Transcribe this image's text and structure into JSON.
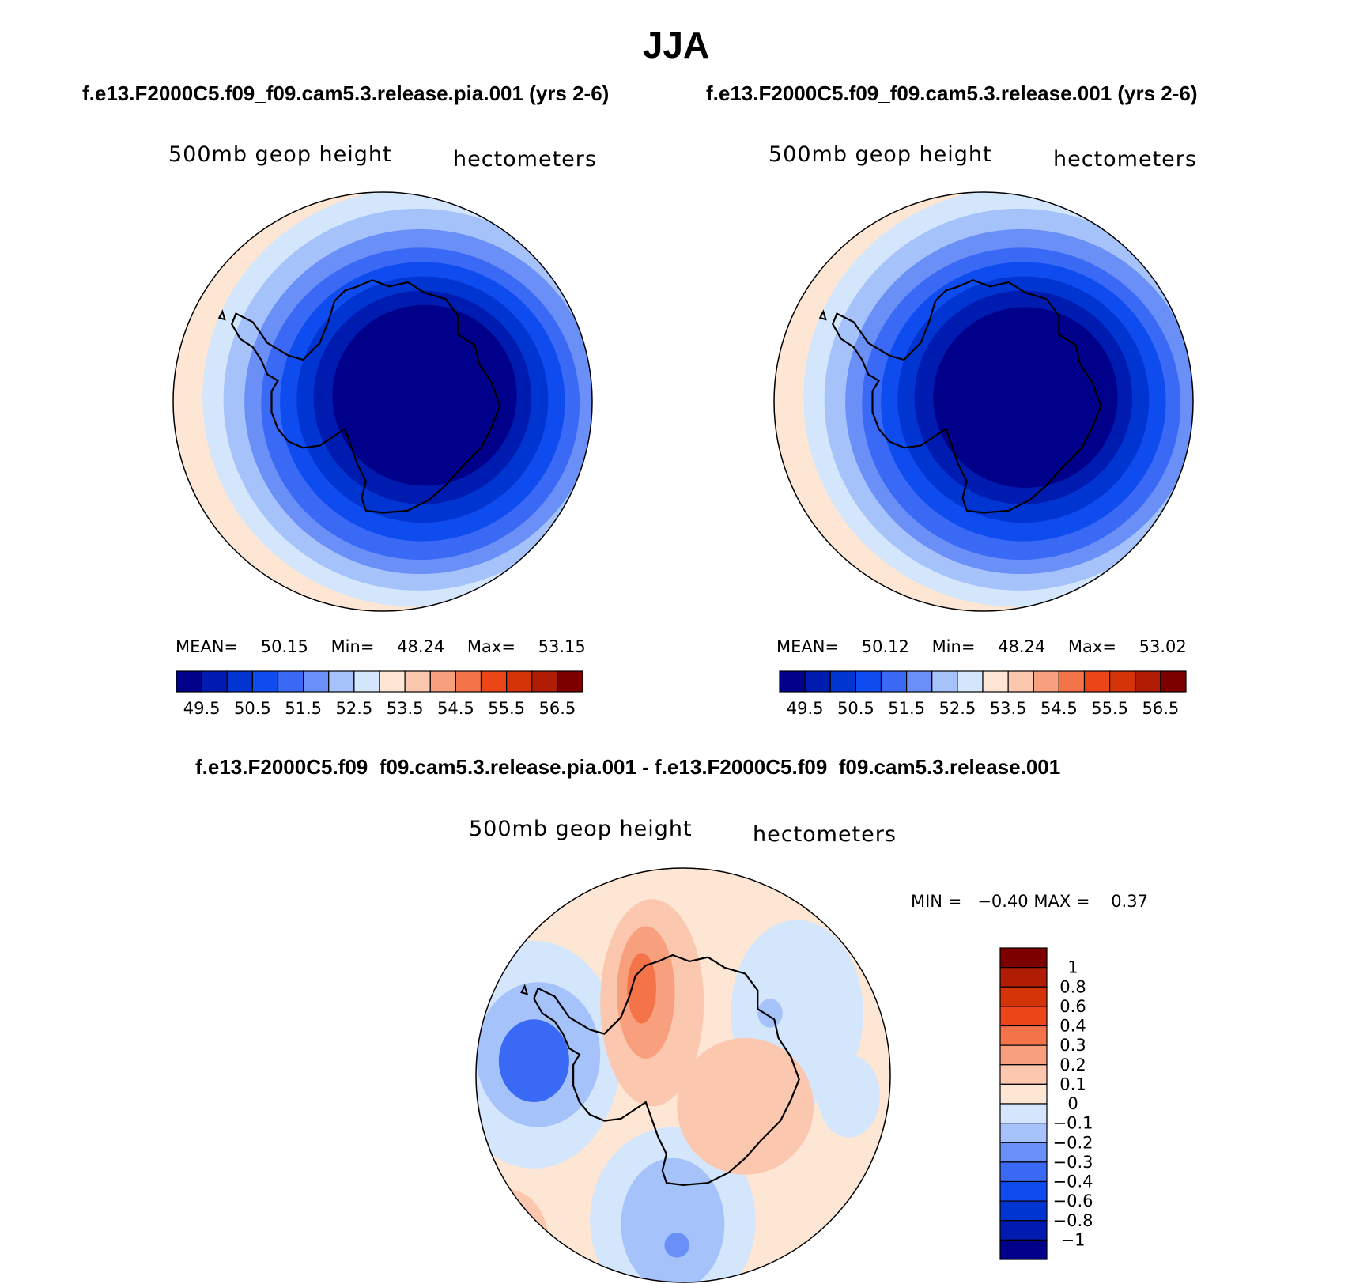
{
  "figure": {
    "title": "JJA",
    "panel_left": {
      "case_title": "f.e13.F2000C5.f09_f09.cam5.3.release.pia.001 (yrs 2-6)",
      "variable": "500mb geop height",
      "units": "hectometers",
      "mean_label": "MEAN=",
      "mean": "50.15",
      "min_label": "Min=",
      "min": "48.24",
      "max_label": "Max=",
      "max": "53.15"
    },
    "panel_right": {
      "case_title": "f.e13.F2000C5.f09_f09.cam5.3.release.001 (yrs 2-6)",
      "variable": "500mb geop height",
      "units": "hectometers",
      "mean_label": "MEAN=",
      "mean": "50.12",
      "min_label": "Min=",
      "min": "48.24",
      "max_label": "Max=",
      "max": "53.02"
    },
    "panel_diff": {
      "case_title": "f.e13.F2000C5.f09_f09.cam5.3.release.pia.001 - f.e13.F2000C5.f09_f09.cam5.3.release.001",
      "variable": "500mb geop height",
      "units": "hectometers",
      "minmax_text": "MIN =   −0.40 MAX =    0.37"
    }
  },
  "chart_data": [
    {
      "type": "heatmap",
      "projection": "south polar stereographic",
      "title": "f.e13.F2000C5.f09_f09.cam5.3.release.pia.001 (yrs 2-6)",
      "variable": "500mb geop height",
      "units": "hectometers",
      "mean": 50.15,
      "min": 48.24,
      "max": 53.15,
      "colorbar_ticks": [
        "49.5",
        "50.5",
        "51.5",
        "52.5",
        "53.5",
        "54.5",
        "55.5",
        "56.5"
      ],
      "levels": [
        49.5,
        50,
        50.5,
        51,
        51.5,
        52,
        52.5,
        53,
        53.5,
        54,
        54.5,
        55,
        55.5,
        56,
        56.5
      ]
    },
    {
      "type": "heatmap",
      "projection": "south polar stereographic",
      "title": "f.e13.F2000C5.f09_f09.cam5.3.release.001 (yrs 2-6)",
      "variable": "500mb geop height",
      "units": "hectometers",
      "mean": 50.12,
      "min": 48.24,
      "max": 53.02,
      "colorbar_ticks": [
        "49.5",
        "50.5",
        "51.5",
        "52.5",
        "53.5",
        "54.5",
        "55.5",
        "56.5"
      ],
      "levels": [
        49.5,
        50,
        50.5,
        51,
        51.5,
        52,
        52.5,
        53,
        53.5,
        54,
        54.5,
        55,
        55.5,
        56,
        56.5
      ]
    },
    {
      "type": "heatmap",
      "projection": "south polar stereographic",
      "title": "f.e13.F2000C5.f09_f09.cam5.3.release.pia.001 - f.e13.F2000C5.f09_f09.cam5.3.release.001",
      "variable": "500mb geop height",
      "units": "hectometers",
      "min": -0.4,
      "max": 0.37,
      "colorbar_ticks": [
        "1",
        "0.8",
        "0.6",
        "0.4",
        "0.3",
        "0.2",
        "0.1",
        "0",
        "−0.1",
        "−0.2",
        "−0.3",
        "−0.4",
        "−0.6",
        "−0.8",
        "−1"
      ],
      "levels": [
        -1,
        -0.8,
        -0.6,
        -0.4,
        -0.3,
        -0.2,
        -0.1,
        0,
        0.1,
        0.2,
        0.3,
        0.4,
        0.6,
        0.8,
        1
      ]
    }
  ],
  "colors": {
    "scale16": [
      "#00008b",
      "#001bb0",
      "#0035d1",
      "#0f4cf0",
      "#3a6af5",
      "#6a90f7",
      "#a6c2fa",
      "#d4e6fb",
      "#fde6d4",
      "#fbc7ae",
      "#f8a07e",
      "#f57349",
      "#eb4518",
      "#d43407",
      "#b01c04",
      "#7d0000"
    ],
    "coast": "#000000"
  }
}
